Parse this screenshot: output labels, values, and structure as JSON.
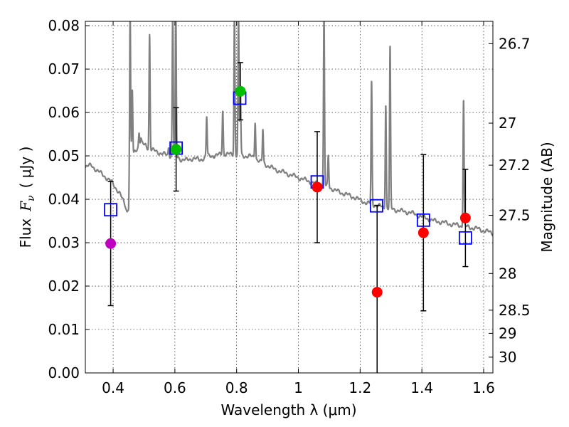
{
  "chart_data": {
    "type": "scatter",
    "title": "",
    "xlabel": "Wavelength  λ (μm)",
    "ylabel_text": "Flux",
    "ylabel_symbol": "F",
    "ylabel_symbol_sub": "ν",
    "ylabel_units": "( μJy )",
    "y2label": "Magnitude (AB)",
    "xlim": [
      0.31,
      1.63
    ],
    "ylim": [
      0.0,
      0.081
    ],
    "grid": true,
    "x_ticks": [
      {
        "value": 0.4,
        "label": "0.4"
      },
      {
        "value": 0.6,
        "label": "0.6"
      },
      {
        "value": 0.8,
        "label": "0.8"
      },
      {
        "value": 1.0,
        "label": "1"
      },
      {
        "value": 1.2,
        "label": "1.2"
      },
      {
        "value": 1.4,
        "label": "1.4"
      },
      {
        "value": 1.6,
        "label": "1.6"
      }
    ],
    "y_ticks": [
      {
        "value": 0.0,
        "label": "0.00"
      },
      {
        "value": 0.01,
        "label": "0.01"
      },
      {
        "value": 0.02,
        "label": "0.02"
      },
      {
        "value": 0.03,
        "label": "0.03"
      },
      {
        "value": 0.04,
        "label": "0.04"
      },
      {
        "value": 0.05,
        "label": "0.05"
      },
      {
        "value": 0.06,
        "label": "0.06"
      },
      {
        "value": 0.07,
        "label": "0.07"
      },
      {
        "value": 0.08,
        "label": "0.08"
      }
    ],
    "mag_ticks": [
      {
        "mag": 26.7,
        "label": "26.7"
      },
      {
        "mag": 27.0,
        "label": "27"
      },
      {
        "mag": 27.2,
        "label": "27.2"
      },
      {
        "mag": 27.5,
        "label": "27.5"
      },
      {
        "mag": 28.0,
        "label": "28"
      },
      {
        "mag": 28.5,
        "label": "28.5"
      },
      {
        "mag": 29.0,
        "label": "29"
      },
      {
        "mag": 30.0,
        "label": "30"
      }
    ],
    "model_spectrum": {
      "name": "model SED",
      "color": "#808080",
      "continuum": [
        [
          0.31,
          0.0475
        ],
        [
          0.33,
          0.0478
        ],
        [
          0.35,
          0.0465
        ],
        [
          0.37,
          0.0455
        ],
        [
          0.385,
          0.0445
        ],
        [
          0.395,
          0.044
        ],
        [
          0.41,
          0.0425
        ],
        [
          0.42,
          0.0415
        ],
        [
          0.43,
          0.04
        ],
        [
          0.44,
          0.0385
        ],
        [
          0.445,
          0.0372
        ],
        [
          0.45,
          0.038
        ],
        [
          0.455,
          0.048
        ],
        [
          0.47,
          0.051
        ],
        [
          0.49,
          0.053
        ],
        [
          0.5,
          0.0525
        ],
        [
          0.52,
          0.0515
        ],
        [
          0.54,
          0.051
        ],
        [
          0.56,
          0.0505
        ],
        [
          0.58,
          0.05
        ],
        [
          0.6,
          0.05
        ],
        [
          0.62,
          0.0492
        ],
        [
          0.64,
          0.049
        ],
        [
          0.66,
          0.0495
        ],
        [
          0.68,
          0.049
        ],
        [
          0.7,
          0.0498
        ],
        [
          0.72,
          0.05
        ],
        [
          0.74,
          0.0502
        ],
        [
          0.76,
          0.0505
        ],
        [
          0.78,
          0.0503
        ],
        [
          0.8,
          0.0502
        ],
        [
          0.82,
          0.05
        ],
        [
          0.84,
          0.05
        ],
        [
          0.86,
          0.0495
        ],
        [
          0.88,
          0.0485
        ],
        [
          0.9,
          0.0478
        ],
        [
          0.92,
          0.047
        ],
        [
          0.94,
          0.0465
        ],
        [
          0.96,
          0.046
        ],
        [
          0.98,
          0.0455
        ],
        [
          1.0,
          0.045
        ],
        [
          1.02,
          0.0445
        ],
        [
          1.04,
          0.044
        ],
        [
          1.06,
          0.0435
        ],
        [
          1.08,
          0.0432
        ],
        [
          1.1,
          0.0428
        ],
        [
          1.12,
          0.042
        ],
        [
          1.14,
          0.0415
        ],
        [
          1.16,
          0.041
        ],
        [
          1.18,
          0.0405
        ],
        [
          1.2,
          0.0398
        ],
        [
          1.22,
          0.0392
        ],
        [
          1.24,
          0.0388
        ],
        [
          1.26,
          0.0385
        ],
        [
          1.28,
          0.038
        ],
        [
          1.3,
          0.0378
        ],
        [
          1.32,
          0.0375
        ],
        [
          1.34,
          0.0372
        ],
        [
          1.36,
          0.037
        ],
        [
          1.38,
          0.0365
        ],
        [
          1.4,
          0.036
        ],
        [
          1.42,
          0.0355
        ],
        [
          1.44,
          0.035
        ],
        [
          1.46,
          0.0348
        ],
        [
          1.48,
          0.0345
        ],
        [
          1.5,
          0.0342
        ],
        [
          1.52,
          0.034
        ],
        [
          1.54,
          0.0337
        ],
        [
          1.56,
          0.0335
        ],
        [
          1.58,
          0.0332
        ],
        [
          1.6,
          0.0328
        ],
        [
          1.63,
          0.0322
        ]
      ],
      "emission_lines": [
        {
          "center": 0.455,
          "peak": 0.083
        },
        {
          "center": 0.462,
          "peak": 0.065
        },
        {
          "center": 0.484,
          "peak": 0.0555
        },
        {
          "center": 0.49,
          "peak": 0.054
        },
        {
          "center": 0.505,
          "peak": 0.0525
        },
        {
          "center": 0.518,
          "peak": 0.078
        },
        {
          "center": 0.58,
          "peak": 0.052
        },
        {
          "center": 0.593,
          "peak": 0.083
        },
        {
          "center": 0.603,
          "peak": 0.083
        },
        {
          "center": 0.703,
          "peak": 0.059
        },
        {
          "center": 0.755,
          "peak": 0.0605
        },
        {
          "center": 0.793,
          "peak": 0.083
        },
        {
          "center": 0.806,
          "peak": 0.083
        },
        {
          "center": 0.812,
          "peak": 0.066
        },
        {
          "center": 0.86,
          "peak": 0.058
        },
        {
          "center": 0.885,
          "peak": 0.056
        },
        {
          "center": 1.083,
          "peak": 0.083
        },
        {
          "center": 1.097,
          "peak": 0.05
        },
        {
          "center": 1.237,
          "peak": 0.067
        },
        {
          "center": 1.283,
          "peak": 0.062
        },
        {
          "center": 1.297,
          "peak": 0.075
        },
        {
          "center": 1.535,
          "peak": 0.063
        }
      ]
    },
    "model_photometry": {
      "name": "model photometry",
      "marker": "open-square",
      "color": "#0000ff",
      "points": [
        {
          "x": 0.392,
          "y": 0.0376
        },
        {
          "x": 0.604,
          "y": 0.0518
        },
        {
          "x": 0.81,
          "y": 0.0633
        },
        {
          "x": 1.061,
          "y": 0.044
        },
        {
          "x": 1.253,
          "y": 0.0385
        },
        {
          "x": 1.405,
          "y": 0.0352
        },
        {
          "x": 1.541,
          "y": 0.0311
        }
      ]
    },
    "observed_photometry": {
      "name": "observed photometry",
      "marker": "filled-circle",
      "points": [
        {
          "x": 0.392,
          "y": 0.0298,
          "yerr": 0.0143,
          "color": "#bf00bf"
        },
        {
          "x": 0.604,
          "y": 0.0515,
          "yerr": 0.0096,
          "color": "#00bf00"
        },
        {
          "x": 0.812,
          "y": 0.0649,
          "yerr": 0.0066,
          "color": "#00bf00"
        },
        {
          "x": 1.061,
          "y": 0.0428,
          "yerr": 0.0128,
          "color": "#ff0000"
        },
        {
          "x": 1.255,
          "y": 0.0186,
          "yerr": 0.02,
          "color": "#ff0000"
        },
        {
          "x": 1.405,
          "y": 0.0323,
          "yerr": 0.018,
          "color": "#ff0000"
        },
        {
          "x": 1.541,
          "y": 0.0357,
          "yerr": 0.0112,
          "color": "#ff0000"
        }
      ]
    }
  }
}
